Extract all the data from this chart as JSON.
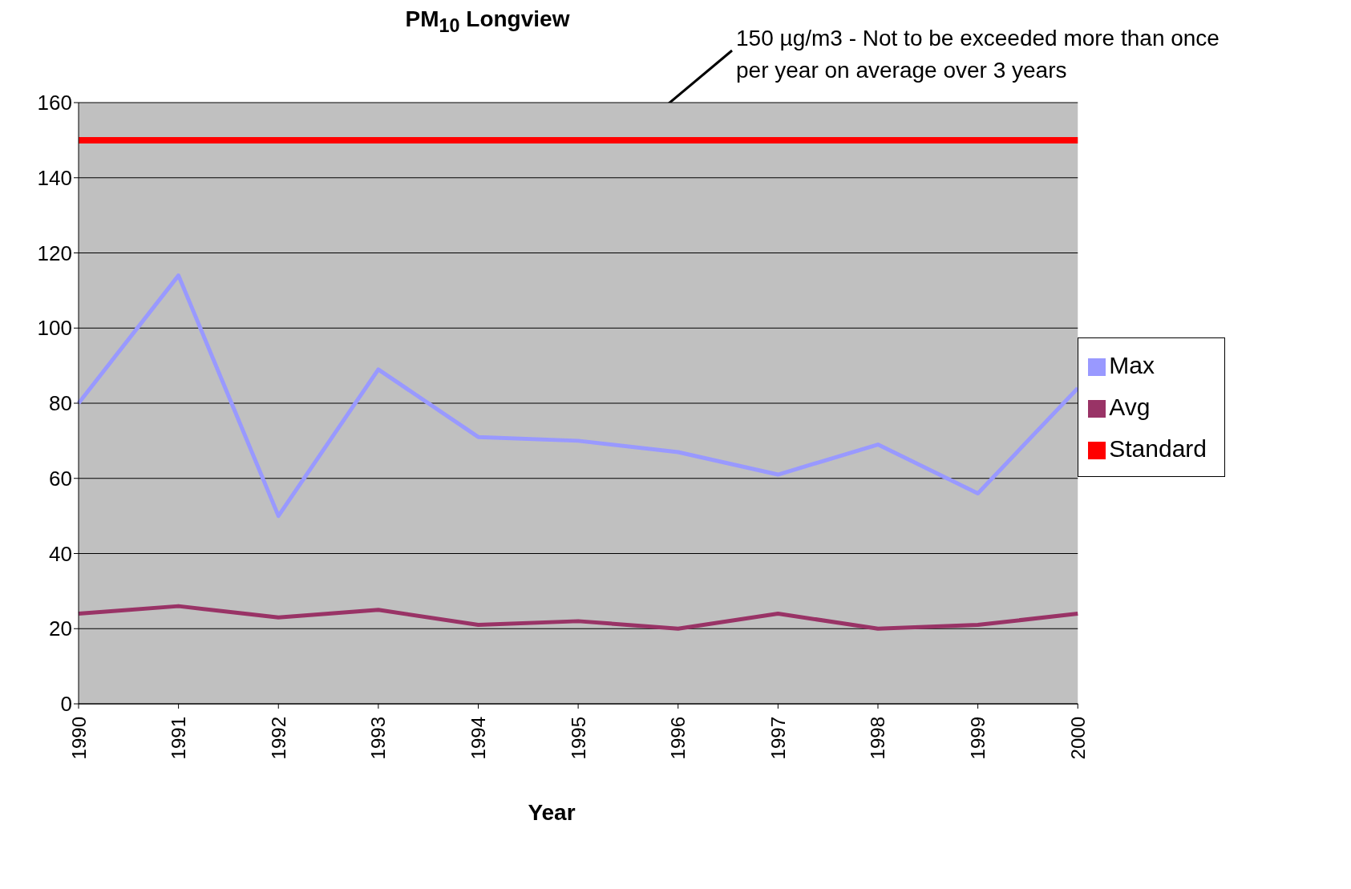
{
  "chart_data": {
    "type": "line",
    "title": "PM$_{10}$ Longview",
    "xlabel": "Year",
    "categories": [
      "1990",
      "1991",
      "1992",
      "1993",
      "1994",
      "1995",
      "1996",
      "1997",
      "1998",
      "1999",
      "2000"
    ],
    "series": [
      {
        "name": "Max",
        "color": "#9999ff",
        "values": [
          80,
          114,
          50,
          89,
          71,
          70,
          67,
          61,
          69,
          56,
          84
        ]
      },
      {
        "name": "Avg",
        "color": "#993366",
        "values": [
          24,
          26,
          23,
          25,
          21,
          22,
          20,
          24,
          20,
          21,
          24
        ]
      },
      {
        "name": "Standard",
        "color": "#ff0000",
        "values": [
          150,
          150,
          150,
          150,
          150,
          150,
          150,
          150,
          150,
          150,
          150
        ]
      }
    ],
    "ylim": [
      0,
      160
    ],
    "yticks": [
      0,
      20,
      40,
      60,
      80,
      100,
      120,
      140,
      160
    ],
    "grid": "y",
    "legend": "right",
    "marker": "none",
    "line_style": "solid",
    "annotations": [
      {
        "text": "150 µg/m3 - Not to be exceeded more than once per year on average over 3 years",
        "y": 150
      }
    ]
  }
}
